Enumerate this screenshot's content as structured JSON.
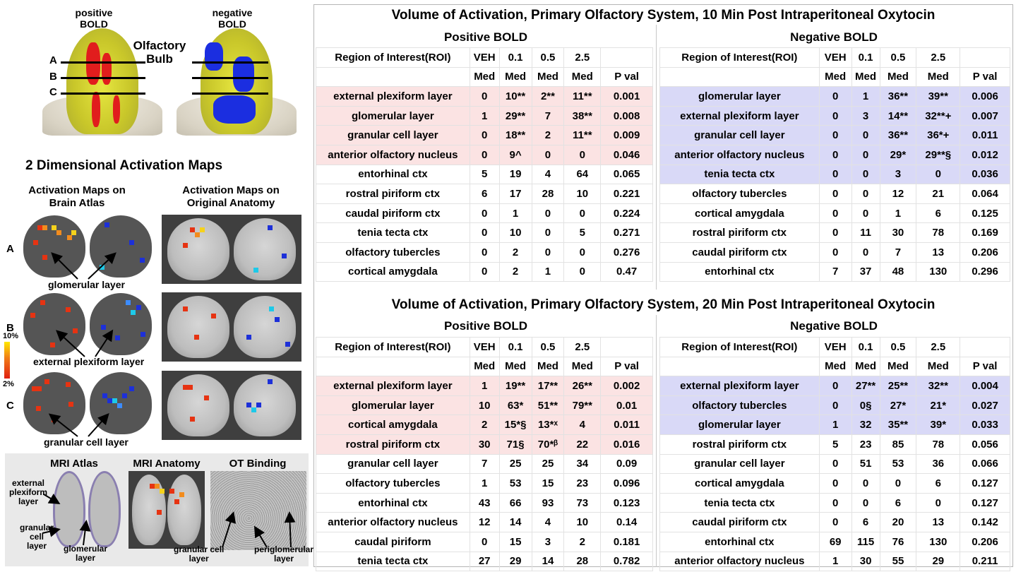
{
  "figure": {
    "bulb_labels": {
      "positive": "positive\nBOLD",
      "negative": "negative\nBOLD",
      "olfactory_bulb": "Olfactory\nBulb"
    },
    "slice_letters": [
      "A",
      "B",
      "C"
    ],
    "maps_title": "2 Dimensional Activation Maps",
    "atlas_title": "Activation Maps on\nBrain Atlas",
    "anatomy_title": "Activation Maps on\nOriginal Anatomy",
    "annotations": {
      "glomerular": "glomerular layer",
      "external": "external plexiform layer",
      "granular": "granular cell layer"
    },
    "scale": {
      "top": "10%",
      "bottom": "2%"
    },
    "bottom": {
      "mri_atlas": "MRI Atlas",
      "mri_anatomy": "MRI Anatomy",
      "ot_binding": "OT Binding",
      "external_plexiform": "external\nplexiform\nlayer",
      "granular_cell": "granular\ncell\nlayer",
      "glomerular": "glomerular\nlayer",
      "granular_cell_layer": "granular cell\nlayer",
      "periglomerular": "periglomerular\nlayer"
    }
  },
  "tables": [
    {
      "title": "Volume of Activation, Primary Olfactory System, 10 Min Post Intraperitoneal Oxytocin",
      "positive": {
        "label": "Positive BOLD",
        "header": [
          "Region of Interest(ROI)",
          "VEH",
          "0.1",
          "0.5",
          "2.5",
          ""
        ],
        "subheader": [
          "",
          "Med",
          "Med",
          "Med",
          "Med",
          "P val"
        ],
        "rows": [
          {
            "cells": [
              "external plexiform layer",
              "0",
              "10**",
              "2**",
              "11**",
              "0.001"
            ],
            "hl": true
          },
          {
            "cells": [
              "glomerular layer",
              "1",
              "29**",
              "7",
              "38**",
              "0.008"
            ],
            "hl": true
          },
          {
            "cells": [
              "granular cell layer",
              "0",
              "18**",
              "2",
              "11**",
              "0.009"
            ],
            "hl": true
          },
          {
            "cells": [
              "anterior olfactory nucleus",
              "0",
              "9^",
              "0",
              "0",
              "0.046"
            ],
            "hl": true
          },
          {
            "cells": [
              "entorhinal ctx",
              "5",
              "19",
              "4",
              "64",
              "0.065"
            ],
            "hl": false
          },
          {
            "cells": [
              "rostral piriform ctx",
              "6",
              "17",
              "28",
              "10",
              "0.221"
            ],
            "hl": false
          },
          {
            "cells": [
              "caudal piriform ctx",
              "0",
              "1",
              "0",
              "0",
              "0.224"
            ],
            "hl": false
          },
          {
            "cells": [
              "tenia tecta ctx",
              "0",
              "10",
              "0",
              "5",
              "0.271"
            ],
            "hl": false
          },
          {
            "cells": [
              "olfactory tubercles",
              "0",
              "2",
              "0",
              "0",
              "0.276"
            ],
            "hl": false
          },
          {
            "cells": [
              "cortical amygdala",
              "0",
              "2",
              "1",
              "0",
              "0.47"
            ],
            "hl": false
          }
        ]
      },
      "negative": {
        "label": "Negative BOLD",
        "header": [
          "Region of Interest(ROI)",
          "VEH",
          "0.1",
          "0.5",
          "2.5",
          ""
        ],
        "subheader": [
          "",
          "Med",
          "Med",
          "Med",
          "Med",
          "P val"
        ],
        "rows": [
          {
            "cells": [
              "glomerular layer",
              "0",
              "1",
              "36**",
              "39**",
              "0.006"
            ],
            "hl": true
          },
          {
            "cells": [
              "external plexiform layer",
              "0",
              "3",
              "14**",
              "32**+",
              "0.007"
            ],
            "hl": true
          },
          {
            "cells": [
              "granular cell layer",
              "0",
              "0",
              "36**",
              "36*+",
              "0.011"
            ],
            "hl": true
          },
          {
            "cells": [
              "anterior olfactory nucleus",
              "0",
              "0",
              "29*",
              "29**§",
              "0.012"
            ],
            "hl": true
          },
          {
            "cells": [
              "tenia tecta ctx",
              "0",
              "0",
              "3",
              "0",
              "0.036"
            ],
            "hl": true
          },
          {
            "cells": [
              "olfactory tubercles",
              "0",
              "0",
              "12",
              "21",
              "0.064"
            ],
            "hl": false
          },
          {
            "cells": [
              "cortical amygdala",
              "0",
              "0",
              "1",
              "6",
              "0.125"
            ],
            "hl": false
          },
          {
            "cells": [
              "rostral piriform ctx",
              "0",
              "11",
              "30",
              "78",
              "0.169"
            ],
            "hl": false
          },
          {
            "cells": [
              "caudal piriform ctx",
              "0",
              "0",
              "7",
              "13",
              "0.206"
            ],
            "hl": false
          },
          {
            "cells": [
              "entorhinal ctx",
              "7",
              "37",
              "48",
              "130",
              "0.296"
            ],
            "hl": false
          }
        ]
      }
    },
    {
      "title": "Volume of Activation, Primary Olfactory System, 20 Min Post Intraperitoneal Oxytocin",
      "positive": {
        "label": "Positive BOLD",
        "header": [
          "Region of Interest(ROI)",
          "VEH",
          "0.1",
          "0.5",
          "2.5",
          ""
        ],
        "subheader": [
          "",
          "Med",
          "Med",
          "Med",
          "Med",
          "P val"
        ],
        "rows": [
          {
            "cells": [
              "external plexiform layer",
              "1",
              "19**",
              "17**",
              "26**",
              "0.002"
            ],
            "hl": true
          },
          {
            "cells": [
              "glomerular layer",
              "10",
              "63*",
              "51**",
              "79**",
              "0.01"
            ],
            "hl": true
          },
          {
            "cells": [
              "cortical amygdala",
              "2",
              "15*§",
              "13*ˣ",
              "4",
              "0.011"
            ],
            "hl": true
          },
          {
            "cells": [
              "rostral piriform ctx",
              "30",
              "71§",
              "70*ᵝ",
              "22",
              "0.016"
            ],
            "hl": true
          },
          {
            "cells": [
              "granular cell layer",
              "7",
              "25",
              "25",
              "34",
              "0.09"
            ],
            "hl": false
          },
          {
            "cells": [
              "olfactory tubercles",
              "1",
              "53",
              "15",
              "23",
              "0.096"
            ],
            "hl": false
          },
          {
            "cells": [
              "entorhinal ctx",
              "43",
              "66",
              "93",
              "73",
              "0.123"
            ],
            "hl": false
          },
          {
            "cells": [
              "anterior olfactory nucleus",
              "12",
              "14",
              "4",
              "10",
              "0.14"
            ],
            "hl": false
          },
          {
            "cells": [
              "caudal piriform",
              "0",
              "15",
              "3",
              "2",
              "0.181"
            ],
            "hl": false
          },
          {
            "cells": [
              "tenia tecta ctx",
              "27",
              "29",
              "14",
              "28",
              "0.782"
            ],
            "hl": false
          }
        ]
      },
      "negative": {
        "label": "Negative BOLD",
        "header": [
          "Region of Interest(ROI)",
          "VEH",
          "0.1",
          "0.5",
          "2.5",
          ""
        ],
        "subheader": [
          "",
          "Med",
          "Med",
          "Med",
          "Med",
          "P val"
        ],
        "rows": [
          {
            "cells": [
              "external plexiform layer",
              "0",
              "27**",
              "25**",
              "32**",
              "0.004"
            ],
            "hl": true
          },
          {
            "cells": [
              "olfactory tubercles",
              "0",
              "0§",
              "27*",
              "21*",
              "0.027"
            ],
            "hl": true
          },
          {
            "cells": [
              "glomerular layer",
              "1",
              "32",
              "35**",
              "39*",
              "0.033"
            ],
            "hl": true
          },
          {
            "cells": [
              "rostral piriform ctx",
              "5",
              "23",
              "85",
              "78",
              "0.056"
            ],
            "hl": false
          },
          {
            "cells": [
              "granular cell layer",
              "0",
              "51",
              "53",
              "36",
              "0.066"
            ],
            "hl": false
          },
          {
            "cells": [
              "cortical amygdala",
              "0",
              "0",
              "0",
              "6",
              "0.127"
            ],
            "hl": false
          },
          {
            "cells": [
              "tenia tecta ctx",
              "0",
              "0",
              "6",
              "0",
              "0.127"
            ],
            "hl": false
          },
          {
            "cells": [
              "caudal piriform ctx",
              "0",
              "6",
              "20",
              "13",
              "0.142"
            ],
            "hl": false
          },
          {
            "cells": [
              "entorhinal ctx",
              "69",
              "115",
              "76",
              "130",
              "0.206"
            ],
            "hl": false
          },
          {
            "cells": [
              "anterior olfactory nucleus",
              "1",
              "30",
              "55",
              "29",
              "0.211"
            ],
            "hl": false
          }
        ]
      }
    }
  ]
}
